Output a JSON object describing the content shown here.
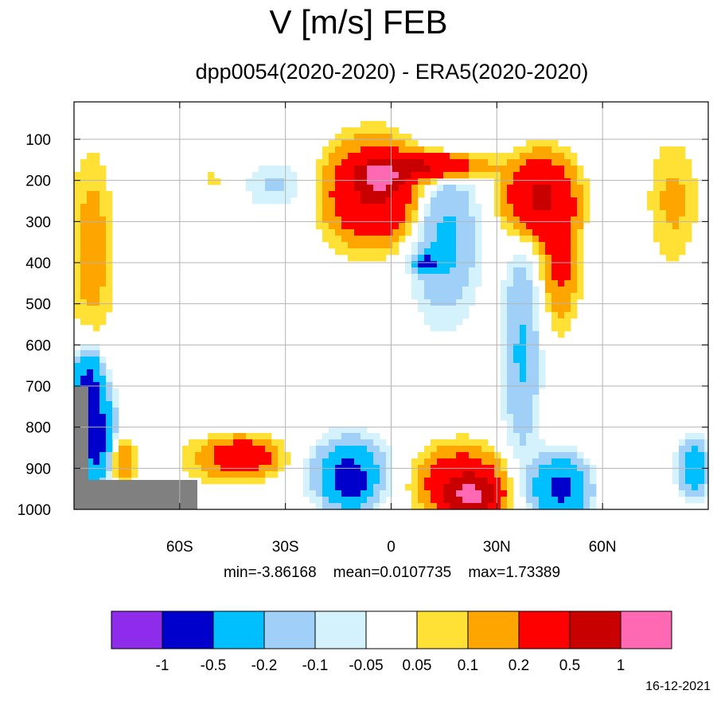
{
  "chart_data": {
    "type": "heatmap",
    "title": "V [m/s] FEB",
    "subtitle": "dpp0054(2020-2020) - ERA5(2020-2020)",
    "x_ticks": [
      "60S",
      "30S",
      "0",
      "30N",
      "60N"
    ],
    "x_tick_values": [
      -60,
      -30,
      0,
      30,
      60
    ],
    "xlim": [
      -90,
      90
    ],
    "y_ticks": [
      "100",
      "200",
      "300",
      "400",
      "500",
      "600",
      "700",
      "800",
      "900",
      "1000"
    ],
    "y_tick_values": [
      100,
      200,
      300,
      400,
      500,
      600,
      700,
      800,
      900,
      1000
    ],
    "ylim": [
      10,
      1000
    ],
    "y_reversed": true,
    "grid": true,
    "stats": {
      "min_label": "min=-3.86168",
      "mean_label": "mean=0.0107735",
      "max_label": "max=1.73389"
    },
    "colorbar": {
      "labels": [
        "-1",
        "-0.5",
        "-0.2",
        "-0.1",
        "-0.05",
        "0.05",
        "0.1",
        "0.2",
        "0.5",
        "1"
      ],
      "colors": [
        "#8f2bea",
        "#0000cd",
        "#00bfff",
        "#a0cff8",
        "#d4f2fc",
        "#ffffff",
        "#ffe135",
        "#ffa500",
        "#ff0000",
        "#c80000",
        "#ff69b4"
      ]
    },
    "field": {
      "description_free": true,
      "levels": [
        -1,
        -0.5,
        -0.2,
        -0.1,
        -0.05,
        0.05,
        0.1,
        0.2,
        0.5,
        1
      ],
      "blobs": [
        {
          "lat": -85,
          "p": 370,
          "w": 6,
          "h": 230,
          "v": 0.15
        },
        {
          "lat": -86,
          "p": 700,
          "w": 4,
          "h": 80,
          "v": -0.6
        },
        {
          "lat": -84,
          "p": 830,
          "w": 5,
          "h": 100,
          "v": -0.7
        },
        {
          "lat": -77,
          "p": 880,
          "w": 4,
          "h": 60,
          "v": 0.25
        },
        {
          "lat": -45,
          "p": 880,
          "w": 14,
          "h": 60,
          "v": 0.15
        },
        {
          "lat": -42,
          "p": 870,
          "w": 8,
          "h": 35,
          "v": 0.3
        },
        {
          "lat": -50,
          "p": 200,
          "w": 8,
          "h": 50,
          "v": 0.06
        },
        {
          "lat": -33,
          "p": 210,
          "w": 10,
          "h": 55,
          "v": -0.12
        },
        {
          "lat": -5,
          "p": 230,
          "w": 12,
          "h": 110,
          "v": 0.55
        },
        {
          "lat": -3,
          "p": 190,
          "w": 5,
          "h": 30,
          "v": 1.2
        },
        {
          "lat": 12,
          "p": 165,
          "w": 12,
          "h": 30,
          "v": 0.55
        },
        {
          "lat": 15,
          "p": 340,
          "w": 9,
          "h": 180,
          "v": -0.25
        },
        {
          "lat": 10,
          "p": 400,
          "w": 3,
          "h": 20,
          "v": -0.55
        },
        {
          "lat": -12,
          "p": 910,
          "w": 10,
          "h": 80,
          "v": -0.35
        },
        {
          "lat": -12,
          "p": 930,
          "w": 5,
          "h": 50,
          "v": -0.6
        },
        {
          "lat": 20,
          "p": 940,
          "w": 11,
          "h": 80,
          "v": 0.45
        },
        {
          "lat": 23,
          "p": 970,
          "w": 6,
          "h": 40,
          "v": 0.9
        },
        {
          "lat": 42,
          "p": 240,
          "w": 9,
          "h": 90,
          "v": 0.55
        },
        {
          "lat": 48,
          "p": 400,
          "w": 5,
          "h": 140,
          "v": 0.25
        },
        {
          "lat": 37,
          "p": 620,
          "w": 5,
          "h": 250,
          "v": -0.22
        },
        {
          "lat": 48,
          "p": 950,
          "w": 7,
          "h": 70,
          "v": -0.6
        },
        {
          "lat": 80,
          "p": 250,
          "w": 7,
          "h": 150,
          "v": 0.12
        },
        {
          "lat": 86,
          "p": 900,
          "w": 4,
          "h": 60,
          "v": -0.4
        }
      ]
    }
  },
  "colors": {
    "missing": "#808080",
    "grid": "#b4b4b4",
    "frame": "#000000"
  },
  "footer": {
    "date": "16-12-2021"
  }
}
